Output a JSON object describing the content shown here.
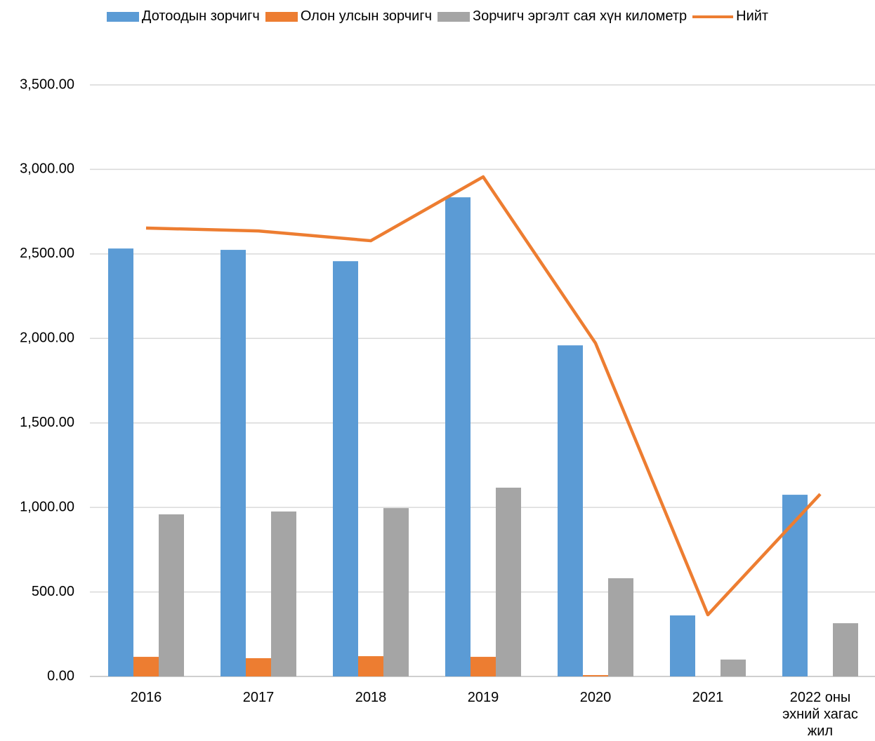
{
  "chart_data": {
    "type": "bar_line",
    "categories": [
      "2016",
      "2017",
      "2018",
      "2019",
      "2020",
      "2021",
      "2022 оны эхний хагас жил"
    ],
    "series": [
      {
        "name": "Дотоодын зорчигч",
        "color": "#5b9bd5",
        "kind": "bar",
        "values": [
          2532,
          2524,
          2457,
          2835,
          1959,
          361,
          1075
        ]
      },
      {
        "name": "Олон улсын зорчигч",
        "color": "#ed7d31",
        "kind": "bar",
        "values": [
          116,
          108,
          120,
          116,
          8,
          0,
          0
        ]
      },
      {
        "name": "Зорчигч эргэлт сая хүн километр",
        "color": "#a5a5a5",
        "kind": "bar",
        "values": [
          959,
          976,
          996,
          1117,
          581,
          100,
          315
        ]
      },
      {
        "name": "Нийт",
        "color": "#ed7d31",
        "kind": "line",
        "values": [
          2653,
          2636,
          2578,
          2956,
          1972,
          365,
          1079
        ]
      }
    ],
    "ylim": [
      0,
      3500
    ],
    "yticks": [
      {
        "value": 0,
        "label": "0.00"
      },
      {
        "value": 500,
        "label": "500.00"
      },
      {
        "value": 1000,
        "label": "1,000.00"
      },
      {
        "value": 1500,
        "label": "1,500.00"
      },
      {
        "value": 2000,
        "label": "2,000.00"
      },
      {
        "value": 2500,
        "label": "2,500.00"
      },
      {
        "value": 3000,
        "label": "3,000.00"
      },
      {
        "value": 3500,
        "label": "3,500.00"
      }
    ],
    "grid": true,
    "legend": "top"
  }
}
